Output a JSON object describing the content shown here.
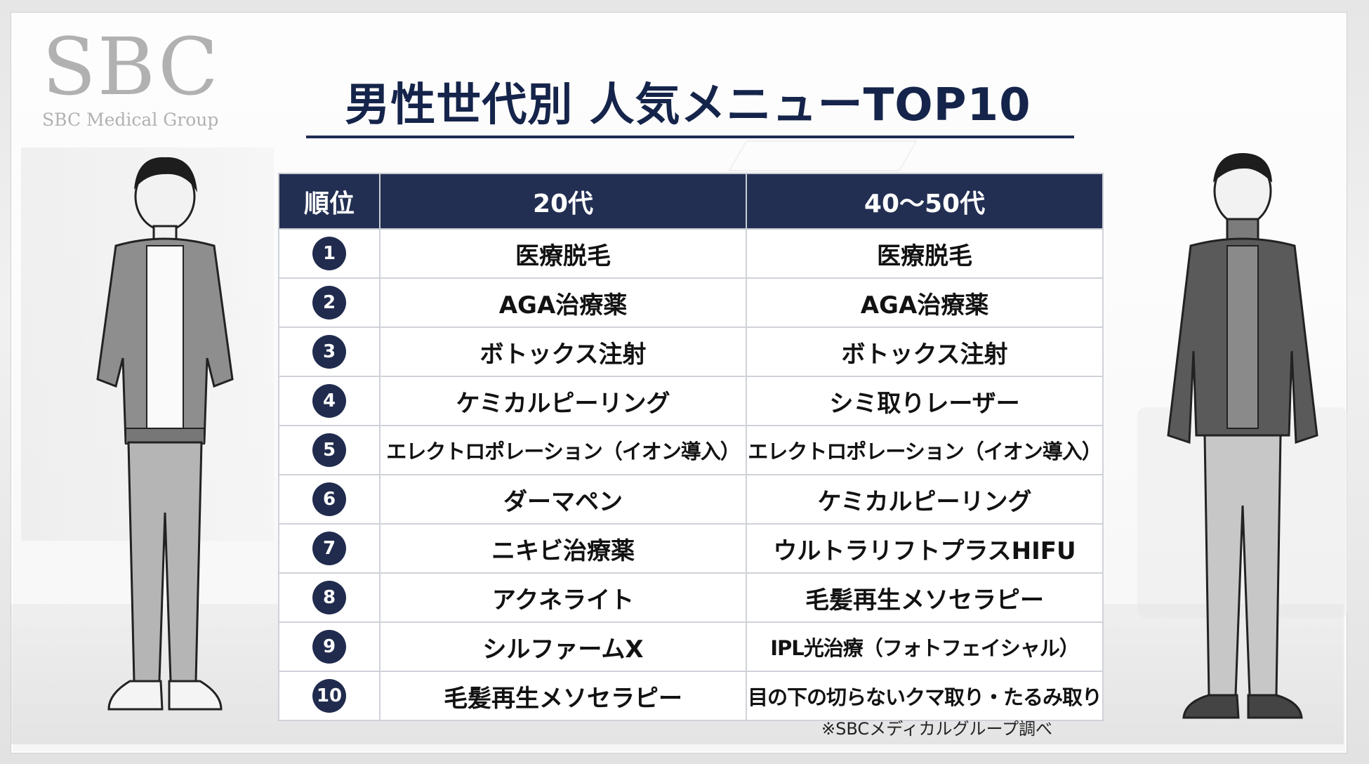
{
  "logo": {
    "mark": "SBC",
    "subtitle": "SBC Medical Group"
  },
  "title": "男性世代別 人気メニューTOP10",
  "table": {
    "headers": [
      "順位",
      "20代",
      "40〜50代"
    ],
    "rows": [
      {
        "rank": "1",
        "age20": "医療脱毛",
        "age40_50": "医療脱毛"
      },
      {
        "rank": "2",
        "age20": "AGA治療薬",
        "age40_50": "AGA治療薬"
      },
      {
        "rank": "3",
        "age20": "ボトックス注射",
        "age40_50": "ボトックス注射"
      },
      {
        "rank": "4",
        "age20": "ケミカルピーリング",
        "age40_50": "シミ取りレーザー"
      },
      {
        "rank": "5",
        "age20": "エレクトロポレーション（イオン導入）",
        "age40_50": "エレクトロポレーション（イオン導入）"
      },
      {
        "rank": "6",
        "age20": "ダーマペン",
        "age40_50": "ケミカルピーリング"
      },
      {
        "rank": "7",
        "age20": "ニキビ治療薬",
        "age40_50": "ウルトラリフトプラスHIFU"
      },
      {
        "rank": "8",
        "age20": "アクネライト",
        "age40_50": "毛髪再生メソセラピー"
      },
      {
        "rank": "9",
        "age20": "シルファームX",
        "age40_50": "IPL光治療（フォトフェイシャル）"
      },
      {
        "rank": "10",
        "age20": "毛髪再生メソセラピー",
        "age40_50": "目の下の切らないクマ取り・たるみ取り"
      }
    ]
  },
  "note": "※SBCメディカルグループ調べ",
  "colors": {
    "navy": "#232f52",
    "title": "#15244a",
    "logo_gray": "#b1b1b1"
  },
  "illustrations": [
    "young-man-illustration",
    "middle-aged-man-illustration"
  ]
}
